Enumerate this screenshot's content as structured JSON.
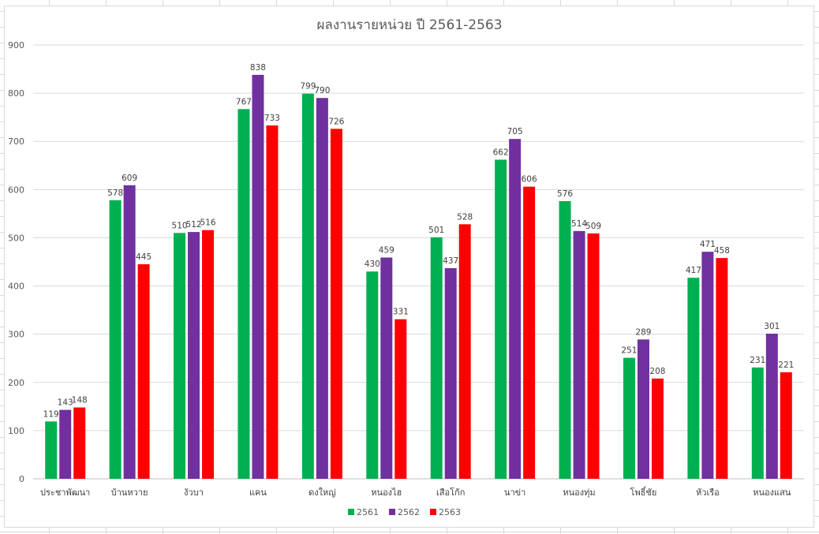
{
  "chart_data": {
    "type": "bar",
    "title": "ผลงานรายหน่วย ปี 2561-2563",
    "xlabel": "",
    "ylabel": "",
    "ylim": [
      0,
      900
    ],
    "yticks": [
      0,
      100,
      200,
      300,
      400,
      500,
      600,
      700,
      800,
      900
    ],
    "grid": true,
    "legend_position": "bottom",
    "categories": [
      "ประชาพัฒนา",
      "บ้านหวาย",
      "งัวบา",
      "แคน",
      "ดงใหญ่",
      "หนองไฮ",
      "เสือโก้ก",
      "นาข่า",
      "หนองทุ่ม",
      "โพธิ์ชัย",
      "หัวเรือ",
      "หนองแสน"
    ],
    "series": [
      {
        "name": "2561",
        "color": "#00b050",
        "values": [
          119,
          578,
          510,
          767,
          799,
          430,
          501,
          662,
          576,
          251,
          417,
          231
        ]
      },
      {
        "name": "2562",
        "color": "#7030a0",
        "values": [
          143,
          609,
          512,
          838,
          790,
          459,
          437,
          705,
          514,
          289,
          471,
          301
        ]
      },
      {
        "name": "2563",
        "color": "#ff0000",
        "values": [
          148,
          445,
          516,
          733,
          726,
          331,
          528,
          606,
          509,
          208,
          458,
          221
        ]
      }
    ]
  }
}
